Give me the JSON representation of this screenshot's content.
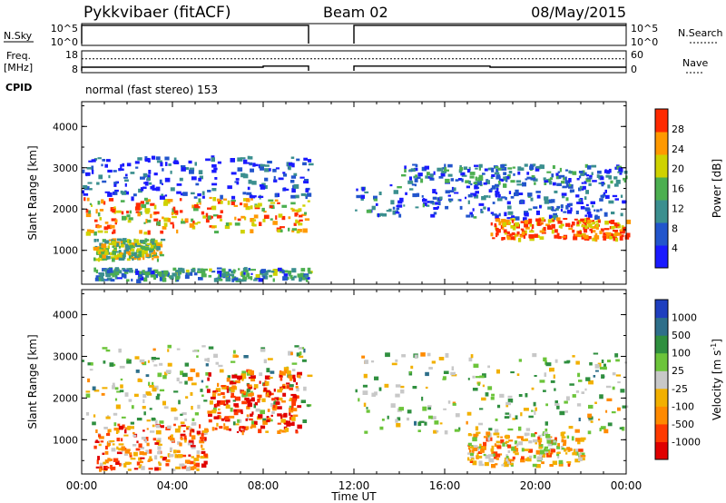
{
  "header": {
    "station": "Pykkvibaer (fitACF)",
    "beam": "Beam 02",
    "date": "08/May/2015"
  },
  "nsky_panel": {
    "left_label": "N.Sky",
    "left_ticks": [
      "10^5",
      "10^0"
    ],
    "right_ticks": [
      "10^5",
      "10^0"
    ],
    "right_label": "N.Search",
    "nsky_level": 0.92,
    "nsearch_level": 0.92
  },
  "freq_panel": {
    "left_label_1": "Freq.",
    "left_label_2": "[MHz]",
    "left_ticks": [
      "18",
      "8"
    ],
    "right_ticks": [
      "60",
      "0"
    ],
    "right_label": "Nave",
    "cpid_label": "CPID",
    "cpid_text": "normal (fast stereo) 153",
    "freq_low_mhz": 10.5,
    "freq_high_mhz": 11.0,
    "freq_switch_hour": 8.0,
    "nave_value": 38,
    "nave_after_switch": 38
  },
  "time_axis": {
    "label": "Time UT",
    "ticks": [
      "00:00",
      "04:00",
      "08:00",
      "12:00",
      "16:00",
      "20:00",
      "00:00"
    ],
    "range_hours": [
      0,
      24
    ],
    "gap_hours": [
      10.0,
      12.0
    ]
  },
  "chart_data": [
    {
      "type": "heatmap",
      "quantity": "power",
      "ylabel": "Slant Range [km]",
      "yticks": [
        1000,
        2000,
        3000,
        4000
      ],
      "ylim": [
        180,
        4600
      ],
      "colorbar_label": "Power [dB]",
      "colorbar_ticks": [
        4,
        8,
        12,
        16,
        20,
        24,
        28
      ],
      "colorbar_range": [
        0,
        32
      ],
      "colorbar_colors": [
        "#1a1aff",
        "#2255cc",
        "#3b8f8f",
        "#4caf50",
        "#cfd200",
        "#ff9900",
        "#ff2a00"
      ],
      "bands": [
        {
          "t0": 0.0,
          "t1": 10.0,
          "r0": 1450,
          "r1": 2300,
          "level": 0.75
        },
        {
          "t0": 0.0,
          "t1": 10.0,
          "r0": 2300,
          "r1": 3300,
          "level": 0.15
        },
        {
          "t0": 0.5,
          "t1": 3.5,
          "r0": 800,
          "r1": 1300,
          "level": 0.55
        },
        {
          "t0": 0.5,
          "t1": 10.0,
          "r0": 300,
          "r1": 600,
          "level": 0.35
        },
        {
          "t0": 12.0,
          "t1": 24.0,
          "r0": 1800,
          "r1": 2600,
          "level": 0.2
        },
        {
          "t0": 18.0,
          "t1": 24.0,
          "r0": 1300,
          "r1": 1800,
          "level": 0.85
        },
        {
          "t0": 14.0,
          "t1": 24.0,
          "r0": 2600,
          "r1": 3100,
          "level": 0.3
        }
      ]
    },
    {
      "type": "heatmap",
      "quantity": "velocity",
      "ylabel": "Slant Range [km]",
      "yticks": [
        1000,
        2000,
        3000,
        4000
      ],
      "ylim": [
        180,
        4600
      ],
      "colorbar_label": "Velocity [m s",
      "colorbar_unit_exp": "-1",
      "colorbar_unit_close": "]",
      "colorbar_ticks": [
        "1000",
        "500",
        "100",
        "25",
        "-25",
        "-100",
        "-500",
        "-1000"
      ],
      "colorbar_colors": [
        "#1f3fbf",
        "#2e6f8a",
        "#2f8f3f",
        "#6cc43a",
        "#c8c8c8",
        "#f2b000",
        "#ff8a00",
        "#ff3a00",
        "#e00000"
      ],
      "bands": [
        {
          "t0": 0.0,
          "t1": 10.0,
          "r0": 1400,
          "r1": 3300,
          "level": 0.45
        },
        {
          "t0": 5.5,
          "t1": 9.5,
          "r0": 1200,
          "r1": 2700,
          "level": 0.85
        },
        {
          "t0": 0.5,
          "t1": 5.5,
          "r0": 300,
          "r1": 1400,
          "level": 0.7
        },
        {
          "t0": 12.0,
          "t1": 24.0,
          "r0": 1200,
          "r1": 3100,
          "level": 0.45
        },
        {
          "t0": 17.0,
          "t1": 22.0,
          "r0": 400,
          "r1": 1200,
          "level": 0.6
        }
      ]
    }
  ]
}
